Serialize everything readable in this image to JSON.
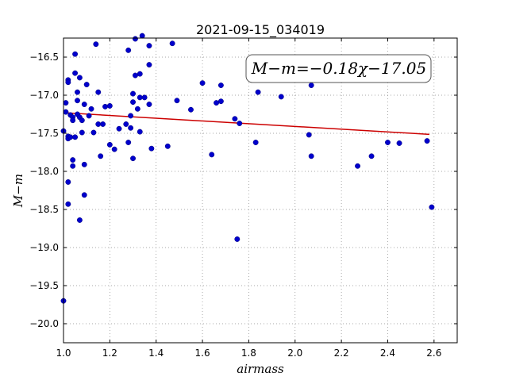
{
  "chart_data": {
    "type": "scatter",
    "title": "2021-09-15_034019",
    "xlabel": "airmass",
    "ylabel": "M−m",
    "xlim": [
      1.0,
      2.7
    ],
    "ylim": [
      -16.25,
      -20.25
    ],
    "y_inverted": true,
    "grid": true,
    "x_ticks": [
      1.0,
      1.2,
      1.4,
      1.6,
      1.8,
      2.0,
      2.2,
      2.4,
      2.6
    ],
    "x_tick_labels": [
      "1.0",
      "1.2",
      "1.4",
      "1.6",
      "1.8",
      "2.0",
      "2.2",
      "2.4",
      "2.6"
    ],
    "y_ticks": [
      -16.5,
      -17.0,
      -17.5,
      -18.0,
      -18.5,
      -19.0,
      -19.5,
      -20.0
    ],
    "y_tick_labels": [
      "−16.5",
      "−17.0",
      "−17.5",
      "−18.0",
      "−18.5",
      "−19.0",
      "−19.5",
      "−20.0"
    ],
    "annotation": "M−m=−0.18χ−17.05",
    "marker_color": "#0000cc",
    "fit_color": "#cc0000",
    "fit_line": {
      "slope": -0.18,
      "intercept": -17.05,
      "x_range": [
        1.02,
        2.58
      ]
    },
    "points": [
      [
        1.0,
        -17.47
      ],
      [
        1.0,
        -19.7
      ],
      [
        1.01,
        -17.1
      ],
      [
        1.01,
        -17.22
      ],
      [
        1.02,
        -16.8
      ],
      [
        1.02,
        -16.83
      ],
      [
        1.02,
        -17.54
      ],
      [
        1.02,
        -17.57
      ],
      [
        1.02,
        -18.14
      ],
      [
        1.02,
        -18.43
      ],
      [
        1.03,
        -17.55
      ],
      [
        1.03,
        -17.26
      ],
      [
        1.04,
        -17.29
      ],
      [
        1.04,
        -17.33
      ],
      [
        1.04,
        -17.93
      ],
      [
        1.04,
        -17.85
      ],
      [
        1.05,
        -16.46
      ],
      [
        1.05,
        -16.71
      ],
      [
        1.05,
        -17.55
      ],
      [
        1.06,
        -17.07
      ],
      [
        1.06,
        -16.96
      ],
      [
        1.06,
        -17.25
      ],
      [
        1.07,
        -17.29
      ],
      [
        1.07,
        -16.77
      ],
      [
        1.07,
        -18.64
      ],
      [
        1.08,
        -17.49
      ],
      [
        1.08,
        -17.33
      ],
      [
        1.09,
        -17.91
      ],
      [
        1.09,
        -18.31
      ],
      [
        1.09,
        -17.12
      ],
      [
        1.1,
        -16.86
      ],
      [
        1.11,
        -17.27
      ],
      [
        1.12,
        -17.18
      ],
      [
        1.13,
        -17.49
      ],
      [
        1.14,
        -16.33
      ],
      [
        1.15,
        -16.96
      ],
      [
        1.15,
        -17.38
      ],
      [
        1.16,
        -17.8
      ],
      [
        1.17,
        -17.38
      ],
      [
        1.18,
        -17.15
      ],
      [
        1.2,
        -17.14
      ],
      [
        1.2,
        -17.65
      ],
      [
        1.22,
        -17.71
      ],
      [
        1.24,
        -17.44
      ],
      [
        1.27,
        -17.38
      ],
      [
        1.28,
        -17.62
      ],
      [
        1.28,
        -16.41
      ],
      [
        1.29,
        -17.43
      ],
      [
        1.29,
        -17.27
      ],
      [
        1.3,
        -16.98
      ],
      [
        1.3,
        -17.09
      ],
      [
        1.3,
        -17.83
      ],
      [
        1.31,
        -16.26
      ],
      [
        1.31,
        -16.74
      ],
      [
        1.32,
        -17.18
      ],
      [
        1.33,
        -17.03
      ],
      [
        1.33,
        -16.72
      ],
      [
        1.33,
        -17.48
      ],
      [
        1.34,
        -16.22
      ],
      [
        1.35,
        -17.03
      ],
      [
        1.37,
        -16.6
      ],
      [
        1.37,
        -16.35
      ],
      [
        1.37,
        -17.12
      ],
      [
        1.38,
        -17.7
      ],
      [
        1.45,
        -17.67
      ],
      [
        1.47,
        -16.32
      ],
      [
        1.49,
        -17.07
      ],
      [
        1.55,
        -17.19
      ],
      [
        1.6,
        -16.84
      ],
      [
        1.64,
        -17.78
      ],
      [
        1.66,
        -17.1
      ],
      [
        1.68,
        -16.87
      ],
      [
        1.68,
        -17.08
      ],
      [
        1.74,
        -17.31
      ],
      [
        1.75,
        -18.89
      ],
      [
        1.76,
        -17.37
      ],
      [
        1.83,
        -17.62
      ],
      [
        1.84,
        -16.96
      ],
      [
        1.94,
        -17.02
      ],
      [
        2.06,
        -17.52
      ],
      [
        2.07,
        -16.87
      ],
      [
        2.07,
        -17.8
      ],
      [
        2.27,
        -17.93
      ],
      [
        2.33,
        -17.8
      ],
      [
        2.4,
        -17.62
      ],
      [
        2.45,
        -17.63
      ],
      [
        2.57,
        -17.6
      ],
      [
        2.59,
        -18.47
      ]
    ]
  }
}
